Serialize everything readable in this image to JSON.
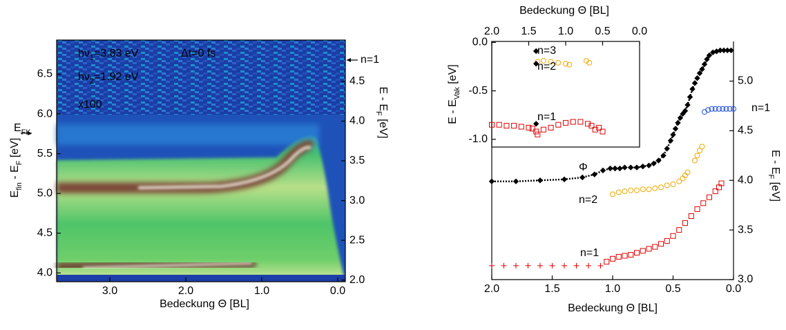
{
  "chart_data": [
    {
      "type": "heatmap",
      "xlabel": "Bedeckung Θ [BL]",
      "ylabel": [
        "E",
        "fin",
        " - E",
        "F",
        " [eV]"
      ],
      "y2label": [
        "E - E",
        "F",
        " [eV]"
      ],
      "xlim": [
        3.7,
        -0.1
      ],
      "xticks": [
        {
          "value": 3,
          "label": "3.0"
        },
        {
          "value": 2,
          "label": "2.0"
        },
        {
          "value": 1,
          "label": "1.0"
        },
        {
          "value": 0,
          "label": "0.0"
        }
      ],
      "ylim": [
        3.89,
        6.93
      ],
      "yticks": [
        {
          "value": 4,
          "label": "4.0"
        },
        4.5,
        {
          "value": 5,
          "label": "5.0"
        },
        5.5,
        {
          "value": 6,
          "label": "6.0"
        },
        6.5
      ],
      "y2lim": [
        1.98,
        5.02
      ],
      "y2ticks": [
        {
          "value": 2,
          "label": "2.0"
        },
        2.5,
        {
          "value": 3,
          "label": "3.0"
        },
        3.5,
        {
          "value": 4,
          "label": "4.0"
        },
        4.5
      ],
      "annotations": [
        [
          "hν",
          "1",
          "=3.83 eV"
        ],
        [
          "Δt=0 fs"
        ],
        [
          "hν",
          "2",
          "=1.92 eV"
        ],
        [
          "x100"
        ],
        [
          "E",
          "FK"
        ],
        [
          "n=1"
        ]
      ]
    },
    {
      "type": "scatter",
      "xlabel": "Bedeckung Θ [BL]",
      "ylabel": [
        "E - E",
        "F",
        " [eV]"
      ],
      "xlim": [
        2.0,
        0.0
      ],
      "xticks": [
        {
          "value": 2,
          "label": "2.0"
        },
        1.5,
        {
          "value": 1,
          "label": "1.0"
        },
        0.5,
        {
          "value": 0,
          "label": "0.0"
        }
      ],
      "ylim": [
        3.0,
        5.4
      ],
      "yticks": [
        {
          "value": 3,
          "label": "3.0"
        },
        3.5,
        {
          "value": 4,
          "label": "4.0"
        },
        4.5,
        {
          "value": 5,
          "label": "5.0"
        }
      ],
      "series": [
        {
          "name": "Φ",
          "color": "#000000",
          "marker": "diamond",
          "linestyle": "dotted",
          "x": [
            2.0,
            1.8,
            1.6,
            1.4,
            1.25,
            1.15,
            1.08,
            1.02,
            0.98,
            0.94,
            0.9,
            0.85,
            0.8,
            0.75,
            0.7,
            0.66,
            0.62,
            0.58,
            0.55,
            0.52,
            0.5,
            0.48,
            0.46,
            0.44,
            0.42,
            0.4,
            0.38,
            0.36,
            0.34,
            0.32,
            0.3,
            0.28,
            0.26,
            0.24,
            0.22,
            0.2,
            0.17,
            0.14,
            0.11,
            0.08,
            0.05,
            0.02
          ],
          "values": [
            3.99,
            3.99,
            4.0,
            4.01,
            4.03,
            4.06,
            4.1,
            4.12,
            4.12,
            4.12,
            4.13,
            4.13,
            4.13,
            4.14,
            4.15,
            4.17,
            4.2,
            4.25,
            4.32,
            4.4,
            4.46,
            4.52,
            4.58,
            4.63,
            4.67,
            4.7,
            4.76,
            4.84,
            4.92,
            4.98,
            5.03,
            5.08,
            5.12,
            5.17,
            5.22,
            5.26,
            5.29,
            5.3,
            5.31,
            5.31,
            5.31,
            5.31
          ]
        },
        {
          "name": "n=2",
          "color": "#f0a800",
          "marker": "circle",
          "x": [
            1.0,
            0.95,
            0.9,
            0.85,
            0.8,
            0.75,
            0.7,
            0.65,
            0.6,
            0.55,
            0.5,
            0.45,
            0.42,
            0.4,
            0.38,
            0.32,
            0.3,
            0.28,
            0.26
          ],
          "values": [
            3.86,
            3.88,
            3.89,
            3.9,
            3.9,
            3.91,
            3.91,
            3.92,
            3.93,
            3.95,
            3.96,
            3.99,
            4.02,
            4.05,
            4.08,
            4.2,
            4.25,
            4.3,
            4.34
          ]
        },
        {
          "name": "n=1",
          "color": "#e00000",
          "marker": "square",
          "x": [
            1.05,
            1.0,
            0.95,
            0.9,
            0.85,
            0.8,
            0.75,
            0.7,
            0.65,
            0.6,
            0.55,
            0.5,
            0.45,
            0.4,
            0.35,
            0.3,
            0.25,
            0.2,
            0.15,
            0.12,
            0.1
          ],
          "values": [
            3.18,
            3.21,
            3.23,
            3.24,
            3.25,
            3.27,
            3.29,
            3.31,
            3.33,
            3.36,
            3.39,
            3.44,
            3.5,
            3.57,
            3.64,
            3.71,
            3.77,
            3.83,
            3.89,
            3.93,
            3.97
          ]
        },
        {
          "color": "#e00000",
          "marker": "cross",
          "x": [
            2.0,
            1.9,
            1.8,
            1.7,
            1.6,
            1.5,
            1.4,
            1.3,
            1.2,
            1.1
          ],
          "values": [
            3.14,
            3.14,
            3.14,
            3.14,
            3.14,
            3.14,
            3.14,
            3.14,
            3.14,
            3.14
          ]
        },
        {
          "name": "n=1",
          "color": "#2050e0",
          "marker": "circle",
          "x": [
            0.24,
            0.21,
            0.18,
            0.15,
            0.12,
            0.09,
            0.06,
            0.03,
            0.0
          ],
          "values": [
            4.69,
            4.71,
            4.72,
            4.72,
            4.72,
            4.72,
            4.72,
            4.72,
            4.72
          ]
        }
      ]
    },
    {
      "type": "scatter",
      "xlabel": "Bedeckung Θ [BL]",
      "ylabel": [
        "E - E",
        "Vak",
        " [eV]"
      ],
      "xlim": [
        2.0,
        0.0
      ],
      "xticks": [
        {
          "value": 2,
          "label": "2.0"
        },
        1.5,
        {
          "value": 1,
          "label": "1.0"
        },
        0.5,
        {
          "value": 0,
          "label": "0.0"
        }
      ],
      "ylim": [
        -1.08,
        0.01
      ],
      "yticks": [
        {
          "value": 0,
          "label": "0.0"
        },
        -0.5,
        {
          "value": -1,
          "label": "-1.0"
        }
      ],
      "series": [
        {
          "name": "n=1",
          "color": "#e00000",
          "marker": "square",
          "x": [
            2.0,
            1.9,
            1.8,
            1.7,
            1.6,
            1.5,
            1.45,
            1.4,
            1.38,
            1.3,
            1.2,
            1.1,
            1.0,
            0.9,
            0.8,
            0.7,
            0.65,
            0.6,
            0.55,
            0.5
          ],
          "values": [
            -0.85,
            -0.85,
            -0.86,
            -0.86,
            -0.87,
            -0.88,
            -0.89,
            -0.92,
            -0.95,
            -0.9,
            -0.88,
            -0.85,
            -0.83,
            -0.82,
            -0.82,
            -0.84,
            -0.86,
            -0.9,
            -0.88,
            -0.92
          ]
        },
        {
          "name": "n=2",
          "color": "#f0a800",
          "marker": "circle",
          "x": [
            1.38,
            1.3,
            1.2,
            1.1,
            1.0,
            0.95,
            0.72,
            0.68
          ],
          "values": [
            -0.2,
            -0.19,
            -0.2,
            -0.21,
            -0.22,
            -0.23,
            -0.19,
            -0.21
          ]
        },
        {
          "name": "n=3",
          "color": "#000000",
          "marker": "diamond",
          "x": [
            1.4,
            1.4,
            1.4
          ],
          "values": [
            -0.09,
            -0.22,
            -0.84
          ]
        }
      ]
    }
  ]
}
